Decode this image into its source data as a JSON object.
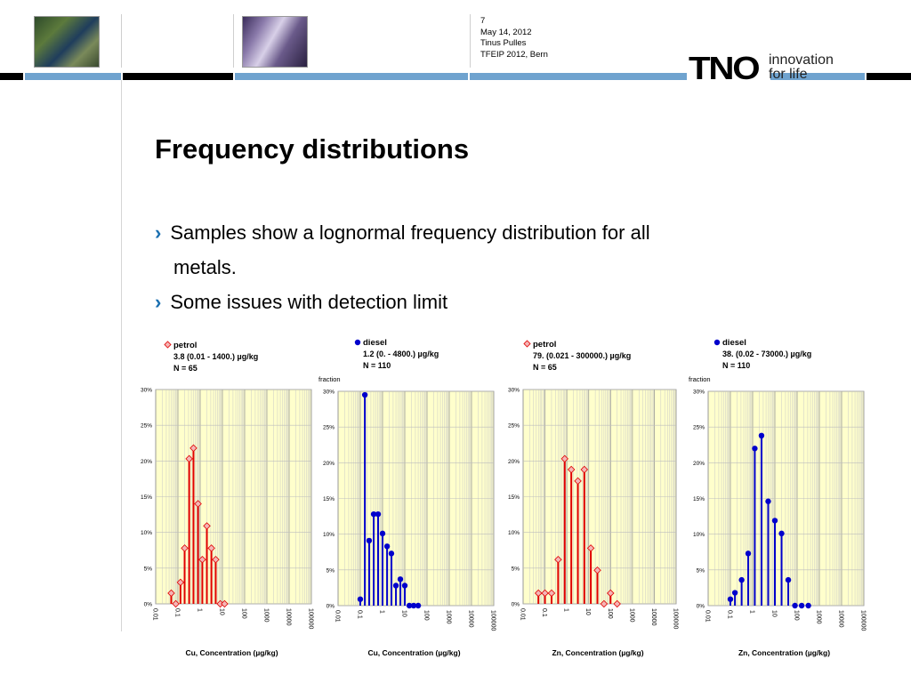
{
  "header": {
    "slide_number": "7",
    "date": "May 14, 2012",
    "author": "Tinus Pulles",
    "event": "TFEIP 2012, Bern",
    "logo_text": "TNO",
    "tagline_1": "innovation",
    "tagline_2": "for life"
  },
  "title": "Frequency distributions",
  "bullets": [
    "Samples show a lognormal frequency distribution for all",
    "metals.",
    "Some issues with detection limit"
  ],
  "colors": {
    "petrol": "#e00000",
    "diesel": "#0000cc",
    "plot_bg": "#ffffcc",
    "accent_bar": "#6fa3cf"
  },
  "chart_data": [
    {
      "type": "line",
      "legend_marker": "diamond",
      "legend_title": "petrol",
      "legend_line2": "3.8 (0.01 - 1400.) µg/kg",
      "legend_line3": "N = 65",
      "ylabel": "",
      "xlabel": "Cu, Concentration (µg/kg)",
      "xscale": "log",
      "xlim": [
        0.01,
        100000
      ],
      "ylim": [
        0,
        30
      ],
      "x_tick_labels": [
        "0.01",
        "0.1",
        "1",
        "10",
        "100",
        "1000",
        "10000",
        "100000"
      ],
      "y_tick_labels": [
        "0%",
        "5%",
        "10%",
        "15%",
        "20%",
        "25%",
        "30%"
      ],
      "x": [
        0.05,
        0.08,
        0.13,
        0.2,
        0.32,
        0.5,
        0.8,
        1.25,
        2,
        3.2,
        5,
        8,
        12.5
      ],
      "values": [
        1.5,
        0,
        3,
        7.8,
        20.3,
        21.8,
        14,
        6.2,
        10.9,
        7.8,
        6.2,
        0,
        0
      ]
    },
    {
      "type": "line",
      "legend_marker": "circle",
      "legend_title": "diesel",
      "legend_line2": "1.2 (0. - 4800.) µg/kg",
      "legend_line3": "N = 110",
      "ylabel": "fraction",
      "xlabel": "Cu, Concentration (µg/kg)",
      "xscale": "log",
      "xlim": [
        0.01,
        100000
      ],
      "ylim": [
        0,
        30
      ],
      "x_tick_labels": [
        "0.01",
        "0.1",
        "1",
        "10",
        "100",
        "1000",
        "10000",
        "100000"
      ],
      "y_tick_labels": [
        "0%",
        "5%",
        "10%",
        "15%",
        "20%",
        "25%",
        "30%"
      ],
      "x": [
        0.1,
        0.16,
        0.25,
        0.4,
        0.63,
        1,
        1.6,
        2.5,
        4,
        6.3,
        10,
        16,
        25,
        40
      ],
      "values": [
        0.9,
        29.5,
        9.1,
        12.8,
        12.8,
        10.1,
        8.3,
        7.3,
        2.8,
        3.7,
        2.8,
        0,
        0,
        0
      ]
    },
    {
      "type": "line",
      "legend_marker": "diamond",
      "legend_title": "petrol",
      "legend_line2": "79. (0.021 - 300000.) µg/kg",
      "legend_line3": "N = 65",
      "ylabel": "",
      "xlabel": "Zn, Concentration (µg/kg)",
      "xscale": "log",
      "xlim": [
        0.01,
        100000
      ],
      "ylim": [
        0,
        30
      ],
      "x_tick_labels": [
        "0.01",
        "0.1",
        "1",
        "10",
        "100",
        "1000",
        "10000",
        "100000"
      ],
      "y_tick_labels": [
        "0%",
        "5%",
        "10%",
        "15%",
        "20%",
        "25%",
        "30%"
      ],
      "x": [
        0.05,
        0.1,
        0.2,
        0.4,
        0.8,
        1.6,
        3.2,
        6.3,
        12.5,
        25,
        50,
        100,
        200
      ],
      "values": [
        1.5,
        1.5,
        1.5,
        6.2,
        20.3,
        18.8,
        17.2,
        18.8,
        7.8,
        4.7,
        0,
        1.5,
        0
      ]
    },
    {
      "type": "line",
      "legend_marker": "circle",
      "legend_title": "diesel",
      "legend_line2": "38. (0.02 - 73000.) µg/kg",
      "legend_line3": "N = 110",
      "ylabel": "fraction",
      "xlabel": "Zn, Concentration (µg/kg)",
      "xscale": "log",
      "xlim": [
        0.01,
        100000
      ],
      "ylim": [
        0,
        30
      ],
      "x_tick_labels": [
        "0.01",
        "0.1",
        "1",
        "10",
        "100",
        "1000",
        "10000",
        "100000"
      ],
      "y_tick_labels": [
        "0%",
        "5%",
        "10%",
        "15%",
        "20%",
        "25%",
        "30%"
      ],
      "x": [
        0.1,
        0.16,
        0.32,
        0.63,
        1.25,
        2.5,
        5,
        10,
        20,
        40,
        80,
        160,
        320
      ],
      "values": [
        0.9,
        1.8,
        3.6,
        7.3,
        22,
        23.8,
        14.6,
        11.9,
        10.1,
        3.6,
        0,
        0,
        0
      ]
    }
  ]
}
